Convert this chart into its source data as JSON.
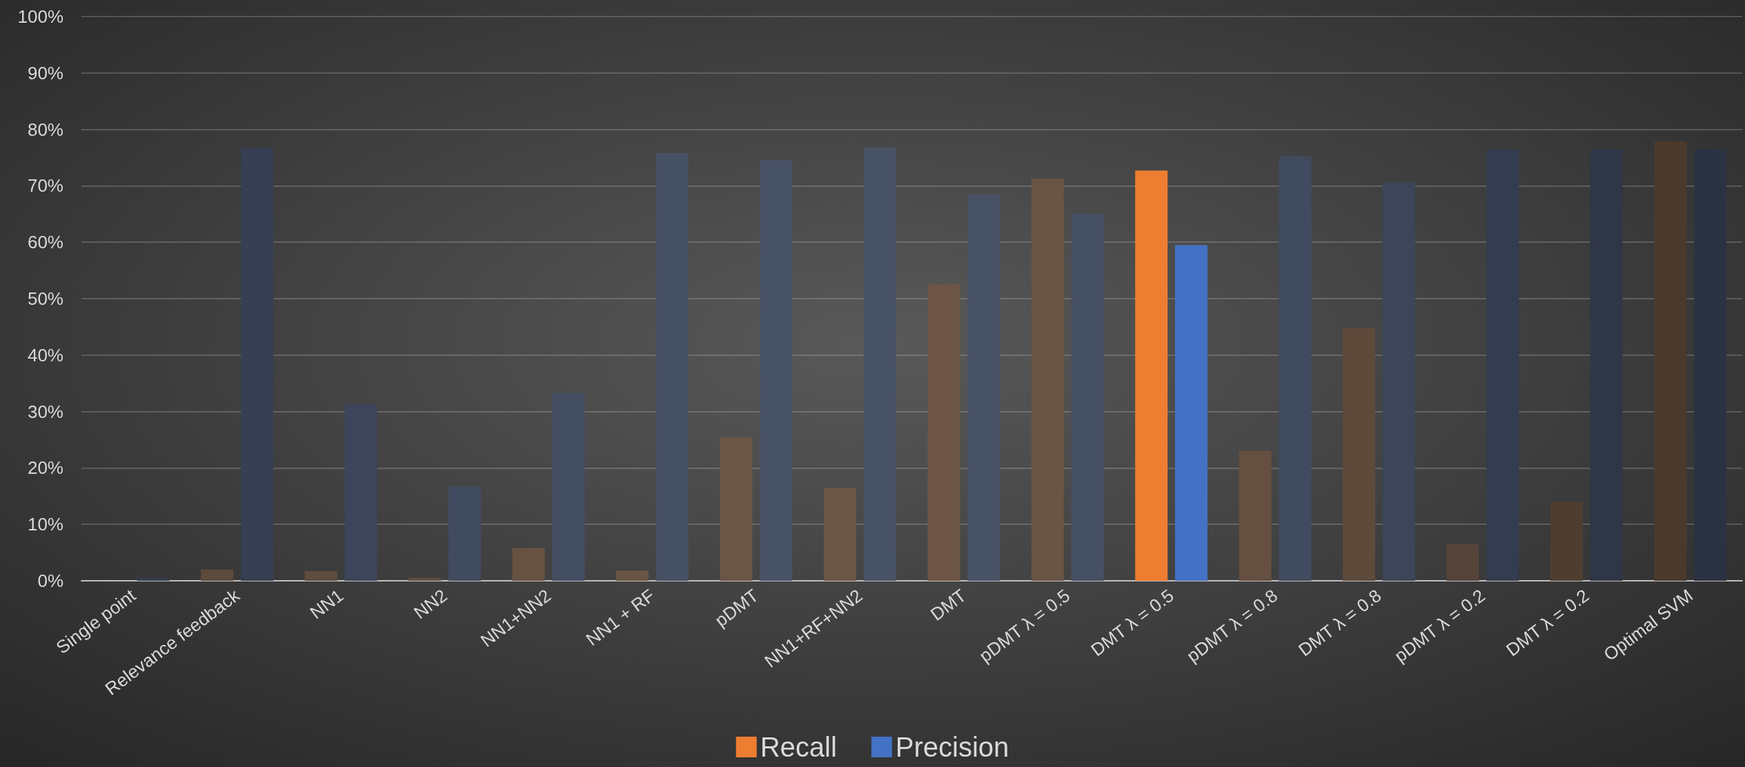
{
  "chart_data": {
    "type": "bar",
    "categories": [
      "Single point",
      "Relevance feedback",
      "NN1",
      "NN2",
      "NN1+NN2",
      "NN1 + RF",
      "pDMT",
      "NN1+RF+NN2",
      "DMT",
      "pDMT λ = 0.5",
      "DMT λ = 0.5",
      "pDMT λ = 0.8",
      "DMT λ = 0.8",
      "pDMT λ = 0.2",
      "DMT λ = 0.2",
      "Optimal SVM"
    ],
    "series": [
      {
        "name": "Recall",
        "color": "#ed7d31",
        "colors": [
          "#5a4838",
          "#5c4a3b",
          "#5f4c3d",
          "#634f3f",
          "#675242",
          "#6a5544",
          "#6b5545",
          "#6c5646",
          "#6d5646",
          "#6a5444",
          "#ed7d31",
          "#654f40",
          "#5e4a3b",
          "#56443a",
          "#4f3e30",
          "#4b3a2c"
        ],
        "values": [
          0,
          2.0,
          1.7,
          0.5,
          5.8,
          1.8,
          25.5,
          16.4,
          52.5,
          71.3,
          72.7,
          23.0,
          44.8,
          6.5,
          14.0,
          77.9
        ]
      },
      {
        "name": "Precision",
        "color": "#4472c4",
        "colors": [
          "#353e52",
          "#363f53",
          "#3c4559",
          "#414b5f",
          "#454f64",
          "#475165",
          "#485266",
          "#495367",
          "#485266",
          "#465064",
          "#4472c4",
          "#414b5f",
          "#3c4658",
          "#343c4f",
          "#2f3647",
          "#2b3242"
        ],
        "values": [
          0.5,
          76.7,
          31.3,
          16.7,
          33.3,
          75.8,
          74.5,
          76.8,
          68.5,
          65.0,
          59.5,
          75.2,
          70.6,
          76.4,
          76.5,
          76.5
        ]
      }
    ],
    "ylim": [
      0,
      100
    ],
    "yticks": [
      {
        "value": 0,
        "label": "0%"
      },
      {
        "value": 10,
        "label": "10%"
      },
      {
        "value": 20,
        "label": "20%"
      },
      {
        "value": 30,
        "label": "30%"
      },
      {
        "value": 40,
        "label": "40%"
      },
      {
        "value": 50,
        "label": "50%"
      },
      {
        "value": 60,
        "label": "60%"
      },
      {
        "value": 70,
        "label": "70%"
      },
      {
        "value": 80,
        "label": "80%"
      },
      {
        "value": 90,
        "label": "90%"
      },
      {
        "value": 100,
        "label": "100%"
      }
    ],
    "grid": "y",
    "legend": "bottom"
  }
}
